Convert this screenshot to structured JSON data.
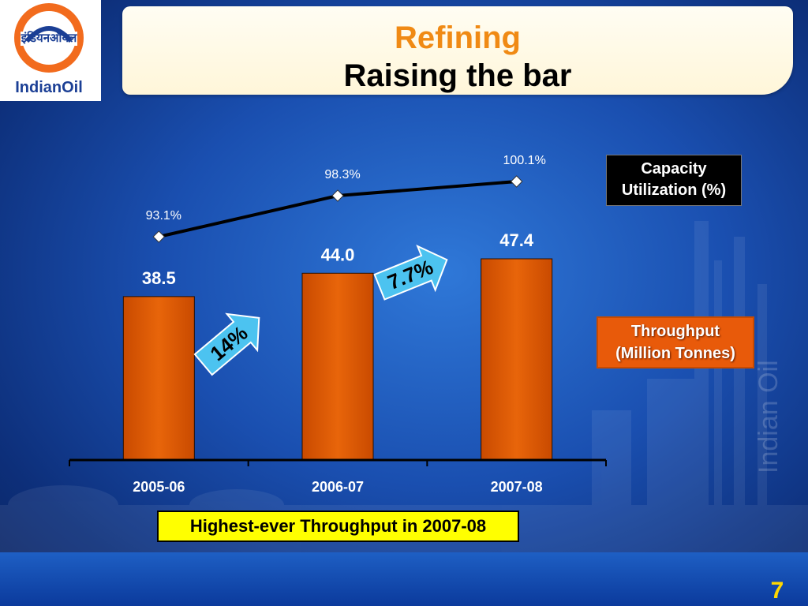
{
  "logo": {
    "hindi_text": "इंडियनऑयल",
    "brand_text": "IndianOil"
  },
  "title": {
    "line1": "Refining",
    "line2": "Raising the bar"
  },
  "legend": {
    "capacity": [
      "Capacity",
      "Utilization (%)"
    ],
    "throughput": [
      "Throughput",
      "(Million Tonnes)"
    ]
  },
  "growth_arrows": [
    {
      "label": "14%",
      "color": "#4cc3f0"
    },
    {
      "label": "7.7%",
      "color": "#4cc3f0"
    }
  ],
  "callout": "Highest-ever Throughput in 2007-08",
  "page_number": "7",
  "watermark": "Indian Oil",
  "colors": {
    "bar": "#e8650a",
    "title_orange": "#f08a14",
    "line": "#000000",
    "marker": "#ffffff",
    "callout_bg": "#ffff00",
    "page_number": "#ffd700"
  },
  "chart_data": {
    "type": "bar",
    "categories": [
      "2005-06",
      "2006-07",
      "2007-08"
    ],
    "series": [
      {
        "name": "Throughput (Million Tonnes)",
        "type": "bar",
        "values": [
          38.5,
          44.0,
          47.4
        ],
        "labels": [
          "38.5",
          "44.0",
          "47.4"
        ]
      },
      {
        "name": "Capacity Utilization (%)",
        "type": "line",
        "values": [
          93.1,
          98.3,
          100.1
        ],
        "labels": [
          "93.1%",
          "98.3%",
          "100.1%"
        ]
      }
    ],
    "ylim": [
      0,
      47.4
    ],
    "line_ylim": [
      87.0,
      100.1
    ],
    "legend_position": "right",
    "grid": false
  }
}
